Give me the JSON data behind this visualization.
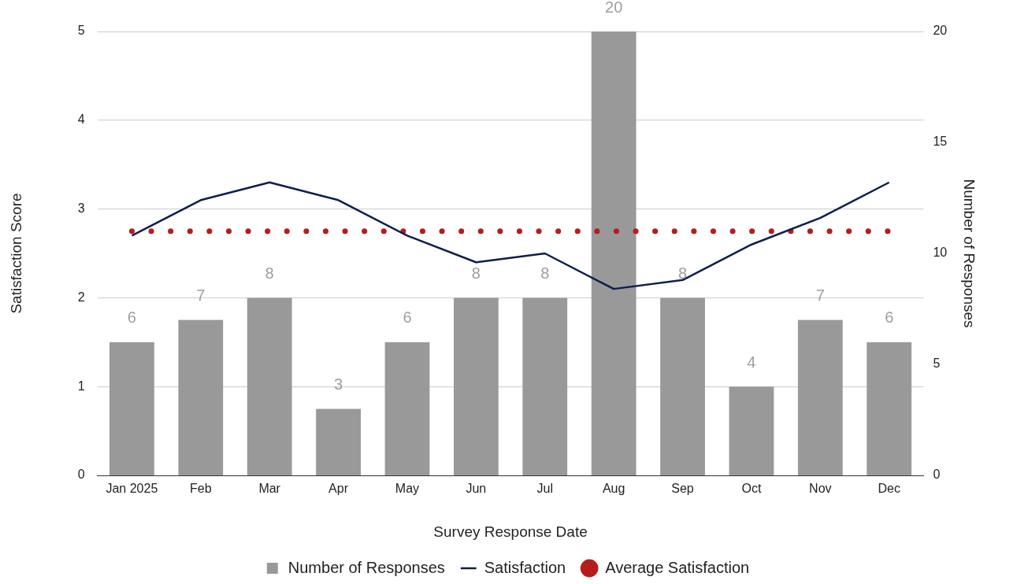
{
  "chart_data": {
    "type": "bar",
    "categories": [
      "Jan 2025",
      "Feb",
      "Mar",
      "Apr",
      "May",
      "Jun",
      "Jul",
      "Aug",
      "Sep",
      "Oct",
      "Nov",
      "Dec"
    ],
    "xlabel": "Survey Response Date",
    "ylabel": "Satisfaction Score",
    "y2label": "Number of Responses",
    "series": [
      {
        "name": "Number of Responses",
        "axis": "y2",
        "color": "#999999",
        "values": [
          6,
          7,
          8,
          3,
          6,
          8,
          8,
          20,
          8,
          4,
          7,
          6
        ],
        "value_labels": [
          "6",
          "7",
          "8",
          "3",
          "6",
          "8",
          "8",
          "20",
          "8",
          "4",
          "7",
          "6"
        ]
      },
      {
        "name": "Satisfaction",
        "type": "line",
        "color": "#0d1f4f",
        "line_style": "solid",
        "values": [
          2.7,
          3.1,
          3.3,
          3.1,
          2.7,
          2.4,
          2.5,
          2.1,
          2.2,
          2.6,
          2.9,
          3.3
        ]
      },
      {
        "name": "Average Satisfaction",
        "type": "line",
        "color": "#b71c1c",
        "line_style": "dotted",
        "values": [
          2.75,
          2.75,
          2.75,
          2.75,
          2.75,
          2.75,
          2.75,
          2.75,
          2.75,
          2.75,
          2.75,
          2.75
        ]
      }
    ],
    "ylim": [
      0,
      5
    ],
    "yticks": [
      0,
      1,
      2,
      3,
      4,
      5
    ],
    "y2lim": [
      0,
      20
    ],
    "y2ticks": [
      0,
      5,
      10,
      15,
      20
    ],
    "grid": "y",
    "legend": "bottom",
    "marker": "none"
  }
}
